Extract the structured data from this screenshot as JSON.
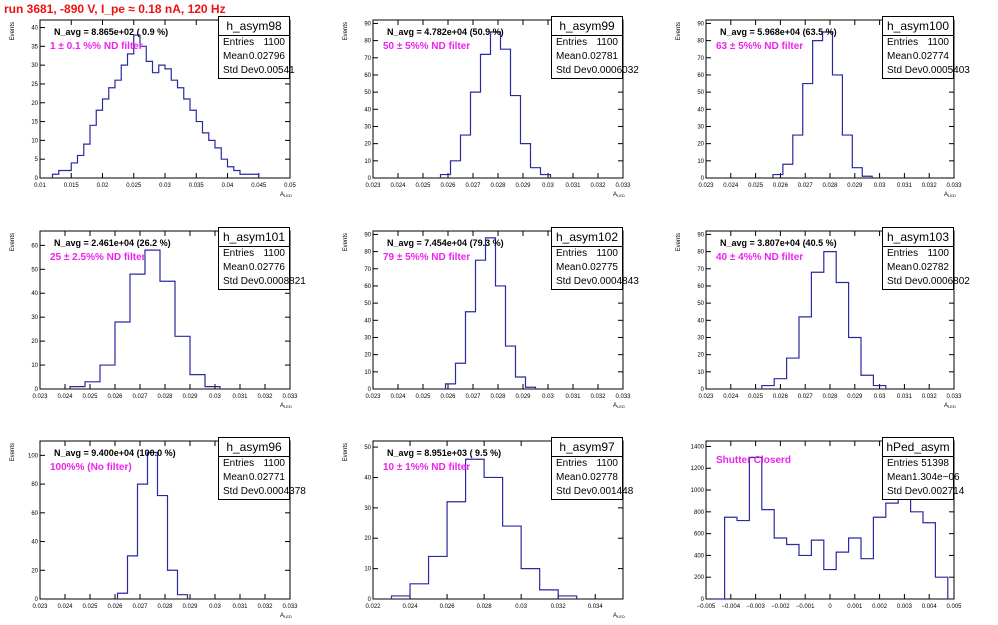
{
  "header": {
    "title": "run 3681,  -890 V, I_pe ≈ 0.18 nA, 120 Hz"
  },
  "colors": {
    "histogram": "#2a2aa0",
    "annotation": "#ee22ee",
    "header": "#ee1111"
  },
  "stat_labels": {
    "entries": "Entries",
    "mean": "Mean",
    "stddev": "Std Dev"
  },
  "chart_data": [
    {
      "type": "histogram",
      "name": "h_asym98",
      "navg": "N_avg = 8.865e+02 ( 0.9 %)",
      "annotation": "1 ± 0.1 %% ND filter",
      "stats": {
        "entries": "1100",
        "mean": "0.02796",
        "stddev": "0.00541"
      },
      "xlabel": "A",
      "xlabel_sub": "LED",
      "ylabel": "Events",
      "xlim": [
        0.01,
        0.05
      ],
      "ylim": [
        0,
        42
      ],
      "xticks": [
        "0.01",
        "0.015",
        "0.02",
        "0.025",
        "0.03",
        "0.035",
        "0.04",
        "0.045",
        "0.05"
      ],
      "xtick_vals": [
        0.01,
        0.015,
        0.02,
        0.025,
        0.03,
        0.035,
        0.04,
        0.045,
        0.05
      ],
      "yticks": [
        "0",
        "5",
        "10",
        "15",
        "20",
        "25",
        "30",
        "35",
        "40"
      ],
      "ytick_vals": [
        0,
        5,
        10,
        15,
        20,
        25,
        30,
        35,
        40
      ],
      "bins": [
        0.0125,
        0.0135,
        0.0145,
        0.0155,
        0.0165,
        0.0175,
        0.0185,
        0.0195,
        0.0205,
        0.0215,
        0.0225,
        0.0235,
        0.0245,
        0.0255,
        0.0265,
        0.0275,
        0.0285,
        0.0295,
        0.0305,
        0.0315,
        0.0325,
        0.0335,
        0.0345,
        0.0355,
        0.0365,
        0.0375,
        0.0385,
        0.0395,
        0.0405,
        0.0415,
        0.0425,
        0.0435,
        0.0445
      ],
      "values": [
        1,
        2,
        2,
        4,
        6,
        9,
        14,
        18,
        21,
        24,
        26,
        30,
        33,
        38,
        35,
        31,
        28,
        30,
        29,
        26,
        24,
        21,
        18,
        15,
        12,
        10,
        8,
        5,
        3,
        2,
        1,
        1,
        1
      ]
    },
    {
      "type": "histogram",
      "name": "h_asym99",
      "navg": "N_avg = 4.782e+04 (50.9 %)",
      "annotation": "50 ± 5%% ND filter",
      "stats": {
        "entries": "1100",
        "mean": "0.02781",
        "stddev": "0.0006032"
      },
      "xlabel": "A",
      "xlabel_sub": "LED",
      "ylabel": "Events",
      "xlim": [
        0.023,
        0.033
      ],
      "ylim": [
        0,
        92
      ],
      "xticks": [
        "0.023",
        "0.024",
        "0.025",
        "0.026",
        "0.027",
        "0.028",
        "0.029",
        "0.03",
        "0.031",
        "0.032",
        "0.033"
      ],
      "xtick_vals": [
        0.023,
        0.024,
        0.025,
        0.026,
        0.027,
        0.028,
        0.029,
        0.03,
        0.031,
        0.032,
        0.033
      ],
      "yticks": [
        "0",
        "10",
        "20",
        "30",
        "40",
        "50",
        "60",
        "70",
        "80",
        "90"
      ],
      "ytick_vals": [
        0,
        10,
        20,
        30,
        40,
        50,
        60,
        70,
        80,
        90
      ],
      "bins": [
        0.0259,
        0.0263,
        0.0267,
        0.0271,
        0.0275,
        0.0279,
        0.0283,
        0.0287,
        0.0291,
        0.0295,
        0.0299
      ],
      "values": [
        2,
        10,
        25,
        50,
        72,
        85,
        75,
        48,
        20,
        6,
        2
      ]
    },
    {
      "type": "histogram",
      "name": "h_asym100",
      "navg": "N_avg = 5.968e+04 (63.5 %)",
      "annotation": "63 ± 5%% ND filter",
      "stats": {
        "entries": "1100",
        "mean": "0.02774",
        "stddev": "0.0005403"
      },
      "xlabel": "A",
      "xlabel_sub": "LED",
      "ylabel": "Events",
      "xlim": [
        0.023,
        0.033
      ],
      "ylim": [
        0,
        92
      ],
      "xticks": [
        "0.023",
        "0.024",
        "0.025",
        "0.026",
        "0.027",
        "0.028",
        "0.029",
        "0.03",
        "0.031",
        "0.032",
        "0.033"
      ],
      "xtick_vals": [
        0.023,
        0.024,
        0.025,
        0.026,
        0.027,
        0.028,
        0.029,
        0.03,
        0.031,
        0.032,
        0.033
      ],
      "yticks": [
        "0",
        "10",
        "20",
        "30",
        "40",
        "50",
        "60",
        "70",
        "80",
        "90"
      ],
      "ytick_vals": [
        0,
        10,
        20,
        30,
        40,
        50,
        60,
        70,
        80,
        90
      ],
      "bins": [
        0.0259,
        0.0263,
        0.0267,
        0.0271,
        0.0275,
        0.0279,
        0.0283,
        0.0287,
        0.0291,
        0.0295
      ],
      "values": [
        2,
        8,
        25,
        55,
        80,
        85,
        60,
        25,
        6,
        1
      ]
    },
    {
      "type": "histogram",
      "name": "h_asym101",
      "navg": "N_avg = 2.461e+04 (26.2 %)",
      "annotation": "25 ± 2.5%% ND filter",
      "stats": {
        "entries": "1100",
        "mean": "0.02776",
        "stddev": "0.0008821"
      },
      "xlabel": "A",
      "xlabel_sub": "LED",
      "ylabel": "Events",
      "xlim": [
        0.023,
        0.033
      ],
      "ylim": [
        0,
        66
      ],
      "xticks": [
        "0.023",
        "0.024",
        "0.025",
        "0.026",
        "0.027",
        "0.028",
        "0.029",
        "0.03",
        "0.031",
        "0.032",
        "0.033"
      ],
      "xtick_vals": [
        0.023,
        0.024,
        0.025,
        0.026,
        0.027,
        0.028,
        0.029,
        0.03,
        0.031,
        0.032,
        0.033
      ],
      "yticks": [
        "0",
        "10",
        "20",
        "30",
        "40",
        "50",
        "60"
      ],
      "ytick_vals": [
        0,
        10,
        20,
        30,
        40,
        50,
        60
      ],
      "bins": [
        0.0245,
        0.0251,
        0.0257,
        0.0263,
        0.0269,
        0.0275,
        0.0281,
        0.0287,
        0.0293,
        0.0299
      ],
      "values": [
        1,
        3,
        10,
        28,
        48,
        58,
        45,
        22,
        6,
        1
      ]
    },
    {
      "type": "histogram",
      "name": "h_asym102",
      "navg": "N_avg = 7.454e+04 (79.3 %)",
      "annotation": "79 ± 5%% ND filter",
      "stats": {
        "entries": "1100",
        "mean": "0.02775",
        "stddev": "0.0004843"
      },
      "xlabel": "A",
      "xlabel_sub": "LED",
      "ylabel": "Events",
      "xlim": [
        0.023,
        0.033
      ],
      "ylim": [
        0,
        92
      ],
      "xticks": [
        "0.023",
        "0.024",
        "0.025",
        "0.026",
        "0.027",
        "0.028",
        "0.029",
        "0.03",
        "0.031",
        "0.032",
        "0.033"
      ],
      "xtick_vals": [
        0.023,
        0.024,
        0.025,
        0.026,
        0.027,
        0.028,
        0.029,
        0.03,
        0.031,
        0.032,
        0.033
      ],
      "yticks": [
        "0",
        "10",
        "20",
        "30",
        "40",
        "50",
        "60",
        "70",
        "80",
        "90"
      ],
      "ytick_vals": [
        0,
        10,
        20,
        30,
        40,
        50,
        60,
        70,
        80,
        90
      ],
      "bins": [
        0.0261,
        0.0265,
        0.0269,
        0.0273,
        0.0277,
        0.0281,
        0.0285,
        0.0289,
        0.0293
      ],
      "values": [
        3,
        15,
        45,
        75,
        88,
        60,
        25,
        7,
        1
      ]
    },
    {
      "type": "histogram",
      "name": "h_asym103",
      "navg": "N_avg = 3.807e+04 (40.5 %)",
      "annotation": "40 ± 4%% ND filter",
      "stats": {
        "entries": "1100",
        "mean": "0.02782",
        "stddev": "0.0006802"
      },
      "xlabel": "A",
      "xlabel_sub": "LED",
      "ylabel": "Events",
      "xlim": [
        0.023,
        0.033
      ],
      "ylim": [
        0,
        92
      ],
      "xticks": [
        "0.023",
        "0.024",
        "0.025",
        "0.026",
        "0.027",
        "0.028",
        "0.029",
        "0.03",
        "0.031",
        "0.032",
        "0.033"
      ],
      "xtick_vals": [
        0.023,
        0.024,
        0.025,
        0.026,
        0.027,
        0.028,
        0.029,
        0.03,
        0.031,
        0.032,
        0.033
      ],
      "yticks": [
        "0",
        "10",
        "20",
        "30",
        "40",
        "50",
        "60",
        "70",
        "80",
        "90"
      ],
      "ytick_vals": [
        0,
        10,
        20,
        30,
        40,
        50,
        60,
        70,
        80,
        90
      ],
      "bins": [
        0.0255,
        0.026,
        0.0265,
        0.027,
        0.0275,
        0.028,
        0.0285,
        0.029,
        0.0295,
        0.03
      ],
      "values": [
        2,
        6,
        18,
        42,
        68,
        80,
        62,
        30,
        8,
        2
      ]
    },
    {
      "type": "histogram",
      "name": "h_asym96",
      "navg": "N_avg = 9.400e+04 (100.0 %)",
      "annotation": "100%% (No filter)",
      "stats": {
        "entries": "1100",
        "mean": "0.02771",
        "stddev": "0.0004378"
      },
      "xlabel": "A",
      "xlabel_sub": "LED",
      "ylabel": "Events",
      "xlim": [
        0.023,
        0.033
      ],
      "ylim": [
        0,
        110
      ],
      "xticks": [
        "0.023",
        "0.024",
        "0.025",
        "0.026",
        "0.027",
        "0.028",
        "0.029",
        "0.03",
        "0.031",
        "0.032",
        "0.033"
      ],
      "xtick_vals": [
        0.023,
        0.024,
        0.025,
        0.026,
        0.027,
        0.028,
        0.029,
        0.03,
        0.031,
        0.032,
        0.033
      ],
      "yticks": [
        "0",
        "20",
        "40",
        "60",
        "80",
        "100"
      ],
      "ytick_vals": [
        0,
        20,
        40,
        60,
        80,
        100
      ],
      "bins": [
        0.0263,
        0.0267,
        0.0271,
        0.0275,
        0.0279,
        0.0283,
        0.0287
      ],
      "values": [
        4,
        30,
        80,
        102,
        72,
        20,
        3
      ]
    },
    {
      "type": "histogram",
      "name": "h_asym97",
      "navg": "N_avg = 8.951e+03 ( 9.5 %)",
      "annotation": "10 ± 1%% ND filter",
      "stats": {
        "entries": "1100",
        "mean": "0.02778",
        "stddev": "0.001448"
      },
      "xlabel": "A",
      "xlabel_sub": "LED",
      "ylabel": "Events",
      "xlim": [
        0.022,
        0.0355
      ],
      "ylim": [
        0,
        52
      ],
      "xticks": [
        "0.022",
        "0.024",
        "0.026",
        "0.028",
        "0.03",
        "0.032",
        "0.034"
      ],
      "xtick_vals": [
        0.022,
        0.024,
        0.026,
        0.028,
        0.03,
        0.032,
        0.034
      ],
      "yticks": [
        "0",
        "10",
        "20",
        "30",
        "40",
        "50"
      ],
      "ytick_vals": [
        0,
        10,
        20,
        30,
        40,
        50
      ],
      "bins": [
        0.0235,
        0.0245,
        0.0255,
        0.0265,
        0.0275,
        0.0285,
        0.0295,
        0.0305,
        0.0315,
        0.0325
      ],
      "values": [
        1,
        5,
        14,
        32,
        46,
        40,
        24,
        10,
        3,
        1
      ]
    },
    {
      "type": "histogram",
      "name": "hPed_asym",
      "navg": "",
      "annotation": "Shutter Closerd",
      "stats": {
        "entries": "51398",
        "mean": "1.304e−06",
        "stddev": "0.002714"
      },
      "xlabel": "",
      "xlabel_sub": "",
      "ylabel": "",
      "xlim": [
        -0.005,
        0.005
      ],
      "ylim": [
        0,
        1450
      ],
      "xticks": [
        "−0.005",
        "−0.004",
        "−0.003",
        "−0.002",
        "−0.001",
        "0",
        "0.001",
        "0.002",
        "0.003",
        "0.004",
        "0.005"
      ],
      "xtick_vals": [
        -0.005,
        -0.004,
        -0.003,
        -0.002,
        -0.001,
        0,
        0.001,
        0.002,
        0.003,
        0.004,
        0.005
      ],
      "yticks": [
        "0",
        "200",
        "400",
        "600",
        "800",
        "1000",
        "1200",
        "1400"
      ],
      "ytick_vals": [
        0,
        200,
        400,
        600,
        800,
        1000,
        1200,
        1400
      ],
      "bins": [
        -0.0045,
        -0.004,
        -0.0035,
        -0.003,
        -0.0025,
        -0.002,
        -0.0015,
        -0.001,
        -0.0005,
        0,
        0.0005,
        0.001,
        0.0015,
        0.002,
        0.0025,
        0.003,
        0.0035,
        0.004,
        0.0045
      ],
      "values": [
        0,
        750,
        720,
        1300,
        820,
        560,
        500,
        400,
        540,
        270,
        430,
        560,
        370,
        750,
        880,
        1000,
        800,
        700,
        200
      ]
    }
  ]
}
